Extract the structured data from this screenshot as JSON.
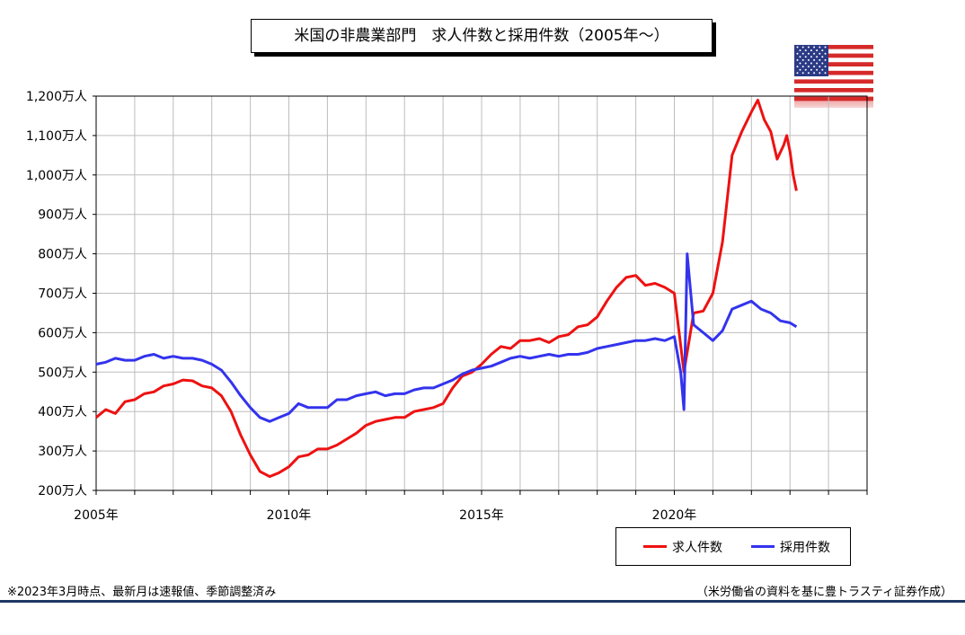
{
  "chart_title": "米国の非農業部門　求人件数と採用件数（2005年～）",
  "note": "※2023年3月時点、最新月は速報値、季節調整済み",
  "source": "（米労働省の資料を基に豊トラスティ証券作成）",
  "flag_icon": "us-flag-icon",
  "colors": {
    "openings": "#ee1111",
    "hires": "#3333ee",
    "grid": "#bdbdbd",
    "footer": "#1f3864"
  },
  "chart_data": {
    "type": "line",
    "title": "米国の非農業部門　求人件数と採用件数（2005年～）",
    "y_unit": "万人",
    "ylim": [
      200,
      1200
    ],
    "y_ticks": [
      "1,200万人",
      "1,100万人",
      "1,000万人",
      "900万人",
      "800万人",
      "700万人",
      "600万人",
      "500万人",
      "400万人",
      "300万人",
      "200万人"
    ],
    "x_ticks": [
      "2005年",
      "2010年",
      "2015年",
      "2020年"
    ],
    "xlim": [
      "2005-01",
      "2024-12"
    ],
    "grid": true,
    "legend_position": "bottom-right",
    "series": [
      {
        "name": "求人件数",
        "color": "#ee1111",
        "points": [
          [
            "2005-01",
            385
          ],
          [
            "2005-04",
            405
          ],
          [
            "2005-07",
            395
          ],
          [
            "2005-10",
            425
          ],
          [
            "2006-01",
            430
          ],
          [
            "2006-04",
            445
          ],
          [
            "2006-07",
            450
          ],
          [
            "2006-10",
            465
          ],
          [
            "2007-01",
            470
          ],
          [
            "2007-04",
            480
          ],
          [
            "2007-07",
            478
          ],
          [
            "2007-10",
            465
          ],
          [
            "2008-01",
            460
          ],
          [
            "2008-04",
            440
          ],
          [
            "2008-07",
            400
          ],
          [
            "2008-10",
            340
          ],
          [
            "2009-01",
            290
          ],
          [
            "2009-04",
            248
          ],
          [
            "2009-07",
            235
          ],
          [
            "2009-10",
            245
          ],
          [
            "2010-01",
            260
          ],
          [
            "2010-04",
            285
          ],
          [
            "2010-07",
            290
          ],
          [
            "2010-10",
            305
          ],
          [
            "2011-01",
            305
          ],
          [
            "2011-04",
            315
          ],
          [
            "2011-07",
            330
          ],
          [
            "2011-10",
            345
          ],
          [
            "2012-01",
            365
          ],
          [
            "2012-04",
            375
          ],
          [
            "2012-07",
            380
          ],
          [
            "2012-10",
            385
          ],
          [
            "2013-01",
            385
          ],
          [
            "2013-04",
            400
          ],
          [
            "2013-07",
            405
          ],
          [
            "2013-10",
            410
          ],
          [
            "2014-01",
            420
          ],
          [
            "2014-04",
            460
          ],
          [
            "2014-07",
            490
          ],
          [
            "2014-10",
            500
          ],
          [
            "2015-01",
            520
          ],
          [
            "2015-04",
            545
          ],
          [
            "2015-07",
            565
          ],
          [
            "2015-10",
            560
          ],
          [
            "2016-01",
            580
          ],
          [
            "2016-04",
            580
          ],
          [
            "2016-07",
            585
          ],
          [
            "2016-10",
            575
          ],
          [
            "2017-01",
            590
          ],
          [
            "2017-04",
            595
          ],
          [
            "2017-07",
            615
          ],
          [
            "2017-10",
            620
          ],
          [
            "2018-01",
            640
          ],
          [
            "2018-04",
            680
          ],
          [
            "2018-07",
            715
          ],
          [
            "2018-10",
            740
          ],
          [
            "2019-01",
            745
          ],
          [
            "2019-04",
            720
          ],
          [
            "2019-07",
            725
          ],
          [
            "2019-10",
            715
          ],
          [
            "2020-01",
            700
          ],
          [
            "2020-04",
            500
          ],
          [
            "2020-07",
            650
          ],
          [
            "2020-10",
            655
          ],
          [
            "2021-01",
            700
          ],
          [
            "2021-04",
            830
          ],
          [
            "2021-07",
            1050
          ],
          [
            "2021-10",
            1110
          ],
          [
            "2022-01",
            1160
          ],
          [
            "2022-03",
            1190
          ],
          [
            "2022-05",
            1140
          ],
          [
            "2022-07",
            1110
          ],
          [
            "2022-09",
            1040
          ],
          [
            "2022-11",
            1075
          ],
          [
            "2022-12",
            1100
          ],
          [
            "2023-01",
            1060
          ],
          [
            "2023-02",
            1000
          ],
          [
            "2023-03",
            960
          ]
        ]
      },
      {
        "name": "採用件数",
        "color": "#3333ee",
        "points": [
          [
            "2005-01",
            520
          ],
          [
            "2005-04",
            525
          ],
          [
            "2005-07",
            535
          ],
          [
            "2005-10",
            530
          ],
          [
            "2006-01",
            530
          ],
          [
            "2006-04",
            540
          ],
          [
            "2006-07",
            545
          ],
          [
            "2006-10",
            535
          ],
          [
            "2007-01",
            540
          ],
          [
            "2007-04",
            535
          ],
          [
            "2007-07",
            535
          ],
          [
            "2007-10",
            530
          ],
          [
            "2008-01",
            520
          ],
          [
            "2008-04",
            505
          ],
          [
            "2008-07",
            475
          ],
          [
            "2008-10",
            440
          ],
          [
            "2009-01",
            410
          ],
          [
            "2009-04",
            385
          ],
          [
            "2009-07",
            375
          ],
          [
            "2009-10",
            385
          ],
          [
            "2010-01",
            395
          ],
          [
            "2010-04",
            420
          ],
          [
            "2010-07",
            410
          ],
          [
            "2010-10",
            410
          ],
          [
            "2011-01",
            410
          ],
          [
            "2011-04",
            430
          ],
          [
            "2011-07",
            430
          ],
          [
            "2011-10",
            440
          ],
          [
            "2012-01",
            445
          ],
          [
            "2012-04",
            450
          ],
          [
            "2012-07",
            440
          ],
          [
            "2012-10",
            445
          ],
          [
            "2013-01",
            445
          ],
          [
            "2013-04",
            455
          ],
          [
            "2013-07",
            460
          ],
          [
            "2013-10",
            460
          ],
          [
            "2014-01",
            470
          ],
          [
            "2014-04",
            480
          ],
          [
            "2014-07",
            495
          ],
          [
            "2014-10",
            505
          ],
          [
            "2015-01",
            510
          ],
          [
            "2015-04",
            515
          ],
          [
            "2015-07",
            525
          ],
          [
            "2015-10",
            535
          ],
          [
            "2016-01",
            540
          ],
          [
            "2016-04",
            535
          ],
          [
            "2016-07",
            540
          ],
          [
            "2016-10",
            545
          ],
          [
            "2017-01",
            540
          ],
          [
            "2017-04",
            545
          ],
          [
            "2017-07",
            545
          ],
          [
            "2017-10",
            550
          ],
          [
            "2018-01",
            560
          ],
          [
            "2018-04",
            565
          ],
          [
            "2018-07",
            570
          ],
          [
            "2018-10",
            575
          ],
          [
            "2019-01",
            580
          ],
          [
            "2019-04",
            580
          ],
          [
            "2019-07",
            585
          ],
          [
            "2019-10",
            580
          ],
          [
            "2020-01",
            590
          ],
          [
            "2020-03",
            500
          ],
          [
            "2020-04",
            405
          ],
          [
            "2020-05",
            800
          ],
          [
            "2020-07",
            620
          ],
          [
            "2020-10",
            600
          ],
          [
            "2021-01",
            580
          ],
          [
            "2021-04",
            605
          ],
          [
            "2021-07",
            660
          ],
          [
            "2021-10",
            670
          ],
          [
            "2022-01",
            680
          ],
          [
            "2022-04",
            660
          ],
          [
            "2022-07",
            650
          ],
          [
            "2022-10",
            630
          ],
          [
            "2023-01",
            625
          ],
          [
            "2023-03",
            615
          ]
        ]
      }
    ]
  }
}
